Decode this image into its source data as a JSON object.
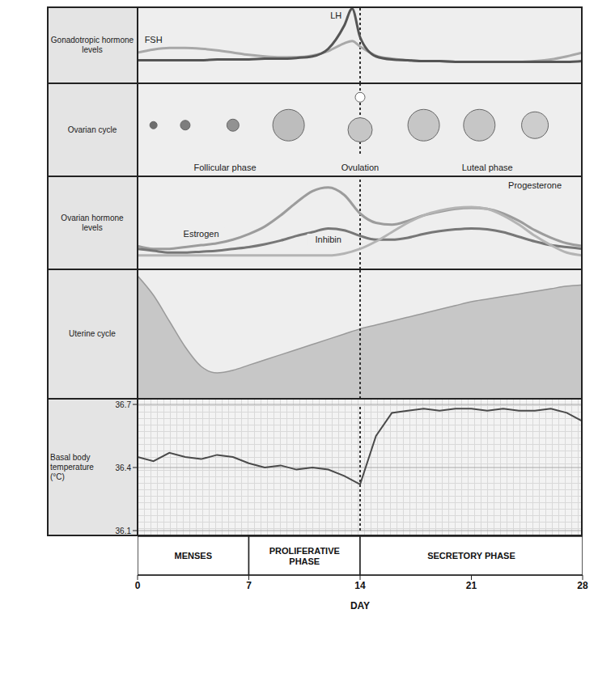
{
  "chart_data": [
    {
      "type": "line",
      "title": "Gonadotropic hormone levels",
      "x": [
        0,
        1,
        2,
        3,
        4,
        5,
        6,
        7,
        8,
        9,
        10,
        11,
        12,
        13,
        13.5,
        14,
        15,
        16,
        17,
        18,
        19,
        20,
        21,
        22,
        23,
        24,
        25,
        26,
        27,
        28
      ],
      "series": [
        {
          "name": "FSH",
          "color": "#a8a8a8",
          "values": [
            40,
            44,
            46,
            46,
            45,
            43,
            40,
            37,
            35,
            34,
            34,
            36,
            42,
            52,
            55,
            48,
            36,
            32,
            30,
            29,
            29,
            28,
            28,
            28,
            28,
            28,
            29,
            31,
            35,
            40
          ]
        },
        {
          "name": "LH",
          "color": "#555555",
          "values": [
            30,
            30,
            30,
            30,
            30,
            31,
            31,
            31,
            32,
            32,
            33,
            35,
            45,
            75,
            97,
            60,
            35,
            31,
            30,
            29,
            29,
            28,
            28,
            28,
            28,
            28,
            28,
            28,
            28,
            29
          ]
        }
      ],
      "xlim": [
        0,
        28
      ],
      "ylim": [
        0,
        100
      ],
      "tick_labels": false
    },
    {
      "type": "scatter",
      "title": "Ovarian cycle",
      "x": [
        1,
        3,
        6,
        9.5,
        14,
        14,
        18,
        21.5,
        25
      ],
      "values": [
        5.5,
        5.5,
        5.5,
        5.5,
        8.5,
        5,
        5.5,
        5.5,
        5.5
      ],
      "sizes": [
        3,
        4,
        5,
        13,
        4,
        10,
        13,
        13,
        11
      ],
      "colors": [
        "#6e6e6e",
        "#7e7e7e",
        "#929292",
        "#bdbdbd",
        "#ffffff",
        "#c6c6c6",
        "#c6c6c6",
        "#c6c6c6",
        "#cdcdcd"
      ],
      "annotations": [
        {
          "text": "Follicular phase",
          "x": 5.5,
          "y": 1
        },
        {
          "text": "Ovulation",
          "x": 14,
          "y": 1
        },
        {
          "text": "Luteal phase",
          "x": 22,
          "y": 1
        }
      ],
      "xlim": [
        0,
        28
      ],
      "ylim": [
        0,
        10
      ],
      "tick_labels": false
    },
    {
      "type": "line",
      "title": "Ovarian hormone levels",
      "x": [
        0,
        1,
        2,
        3,
        4,
        5,
        6,
        7,
        8,
        9,
        10,
        11,
        12,
        13,
        14,
        15,
        16,
        17,
        18,
        19,
        20,
        21,
        22,
        23,
        24,
        25,
        26,
        27,
        28
      ],
      "series": [
        {
          "name": "Estrogen",
          "color": "#9c9c9c",
          "values": [
            25,
            22,
            22,
            24,
            26,
            28,
            32,
            38,
            46,
            58,
            72,
            84,
            88,
            80,
            60,
            50,
            48,
            52,
            58,
            62,
            65,
            66,
            65,
            60,
            52,
            42,
            34,
            28,
            25
          ]
        },
        {
          "name": "Inhibin",
          "color": "#777777",
          "values": [
            22,
            20,
            18,
            18,
            19,
            20,
            22,
            24,
            27,
            31,
            36,
            40,
            44,
            42,
            36,
            32,
            32,
            34,
            38,
            41,
            43,
            44,
            43,
            40,
            35,
            30,
            26,
            24,
            22
          ]
        },
        {
          "name": "Progesterone",
          "color": "#b4b4b4",
          "values": [
            15,
            15,
            15,
            15,
            15,
            15,
            15,
            15,
            15,
            15,
            15,
            15,
            15,
            17,
            22,
            30,
            40,
            50,
            58,
            63,
            66,
            67,
            65,
            58,
            48,
            36,
            26,
            18,
            15
          ]
        }
      ],
      "xlim": [
        0,
        28
      ],
      "ylim": [
        0,
        100
      ],
      "tick_labels": false
    },
    {
      "type": "area",
      "title": "Uterine cycle",
      "x": [
        0,
        1,
        2,
        3,
        4,
        5,
        6,
        7,
        8,
        9,
        10,
        11,
        12,
        13,
        14,
        15,
        16,
        17,
        18,
        19,
        20,
        21,
        22,
        23,
        24,
        25,
        26,
        27,
        28
      ],
      "values": [
        95,
        80,
        60,
        40,
        25,
        20,
        22,
        26,
        30,
        34,
        38,
        42,
        46,
        50,
        54,
        57,
        60,
        63,
        66,
        69,
        72,
        75,
        77,
        79,
        81,
        83,
        85,
        87,
        88
      ],
      "color": "#c2c2c2",
      "xlim": [
        0,
        28
      ],
      "ylim": [
        0,
        100
      ],
      "tick_labels": false
    },
    {
      "type": "line",
      "title": "Basal body temperature (°C)",
      "x": [
        0,
        1,
        2,
        3,
        4,
        5,
        6,
        7,
        8,
        9,
        10,
        11,
        12,
        13,
        14,
        15,
        16,
        17,
        18,
        19,
        20,
        21,
        22,
        23,
        24,
        25,
        26,
        27,
        28
      ],
      "values": [
        36.45,
        36.43,
        36.47,
        36.45,
        36.44,
        36.46,
        36.45,
        36.42,
        36.4,
        36.41,
        36.39,
        36.4,
        36.39,
        36.36,
        36.32,
        36.55,
        36.66,
        36.67,
        36.68,
        36.67,
        36.68,
        36.68,
        36.67,
        36.68,
        36.67,
        36.67,
        36.68,
        36.66,
        36.62
      ],
      "color": "#4a4a4a",
      "xlim": [
        0,
        28
      ],
      "ylim": [
        36.1,
        36.7
      ],
      "yticks": [
        36.1,
        36.4,
        36.7
      ],
      "grid": true,
      "tick_labels": "y"
    },
    {
      "type": "bar",
      "orientation": "horizontal",
      "stacked": true,
      "series": [
        {
          "name": "MENSES",
          "color": "#ffffff",
          "values": [
            7
          ]
        },
        {
          "name": "PROLIFERATIVE PHASE",
          "color": "#ffffff",
          "values": [
            7
          ]
        },
        {
          "name": "SECRETORY PHASE",
          "color": "#ffffff",
          "values": [
            14
          ]
        }
      ],
      "xlim": [
        0,
        28
      ],
      "xticks": [
        0,
        7,
        14,
        21,
        28
      ],
      "x_label": "DAY",
      "tick_labels": "x"
    }
  ],
  "ovulation_day": 14
}
